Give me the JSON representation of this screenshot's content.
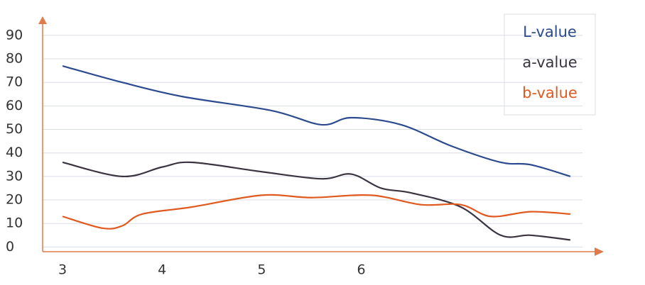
{
  "chart_data": {
    "type": "line",
    "xlim": [
      2.8,
      8.4
    ],
    "xticks": [
      3,
      4,
      5,
      6
    ],
    "ylim": [
      -2,
      96
    ],
    "yticks": [
      0,
      10,
      20,
      30,
      40,
      50,
      60,
      70,
      80,
      90
    ],
    "grid": true,
    "legend": "top-right",
    "series": [
      {
        "name": "L-value",
        "color": "#2c4a8e",
        "x": [
          3,
          3.6,
          4.2,
          5.1,
          5.6,
          5.9,
          6.4,
          6.9,
          7.4,
          7.7,
          8.1
        ],
        "values": [
          77,
          70,
          64,
          58,
          52,
          55,
          52,
          43,
          36,
          35,
          30
        ]
      },
      {
        "name": "a-value",
        "color": "#3b3440",
        "x": [
          3,
          3.6,
          4,
          4.3,
          5,
          5.6,
          5.9,
          6.2,
          6.5,
          7,
          7.4,
          7.7,
          8.1
        ],
        "values": [
          36,
          30,
          34,
          36,
          32,
          29,
          31,
          25,
          23,
          17,
          5,
          5,
          3
        ]
      },
      {
        "name": "b-value",
        "color": "#e0591f",
        "x": [
          3,
          3.4,
          3.6,
          3.8,
          4.3,
          5,
          5.5,
          6.1,
          6.6,
          7,
          7.3,
          7.7,
          8.1
        ],
        "values": [
          13,
          8,
          9,
          14,
          17,
          22,
          21,
          22,
          18,
          18,
          13,
          15,
          14
        ]
      }
    ]
  }
}
